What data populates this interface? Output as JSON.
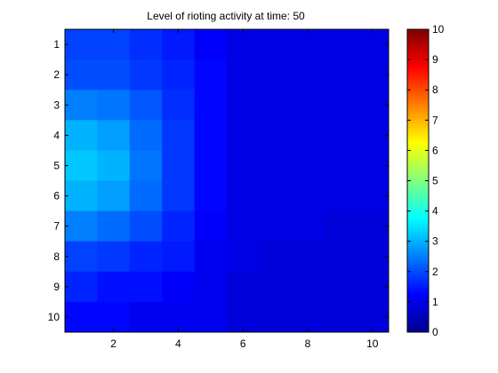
{
  "chart_data": {
    "type": "heatmap",
    "title": "Level of rioting activity at time: 50",
    "xlabel": "",
    "ylabel": "",
    "x_ticks": [
      2,
      4,
      6,
      8,
      10
    ],
    "y_ticks": [
      1,
      2,
      3,
      4,
      5,
      6,
      7,
      8,
      9,
      10
    ],
    "xlim": [
      0.5,
      10.5
    ],
    "ylim": [
      0.5,
      10.5
    ],
    "y_direction": "reversed",
    "colormap": "jet",
    "colorbar": {
      "min": 0,
      "max": 10,
      "ticks": [
        0,
        1,
        2,
        3,
        4,
        5,
        6,
        7,
        8,
        9,
        10
      ],
      "placement": "right"
    },
    "grid": false,
    "values": [
      [
        1.9,
        1.9,
        1.7,
        1.5,
        1.2,
        1.0,
        1.0,
        1.0,
        1.0,
        1.0
      ],
      [
        2.0,
        2.0,
        1.8,
        1.6,
        1.3,
        1.0,
        1.0,
        1.0,
        1.0,
        1.0
      ],
      [
        2.5,
        2.4,
        2.1,
        1.7,
        1.3,
        1.0,
        1.0,
        1.0,
        1.0,
        1.0
      ],
      [
        3.0,
        2.8,
        2.3,
        1.8,
        1.3,
        1.0,
        1.0,
        1.0,
        1.0,
        1.0
      ],
      [
        3.2,
        3.0,
        2.4,
        1.8,
        1.3,
        1.0,
        1.0,
        1.0,
        1.0,
        1.0
      ],
      [
        3.0,
        2.8,
        2.3,
        1.8,
        1.3,
        1.0,
        1.0,
        1.0,
        1.0,
        1.0
      ],
      [
        2.5,
        2.3,
        2.0,
        1.6,
        1.2,
        1.0,
        1.0,
        1.0,
        0.9,
        0.9
      ],
      [
        1.9,
        1.8,
        1.6,
        1.5,
        1.1,
        1.0,
        0.9,
        0.9,
        0.9,
        0.9
      ],
      [
        1.6,
        1.4,
        1.4,
        1.2,
        1.1,
        0.9,
        0.9,
        0.9,
        0.9,
        0.9
      ],
      [
        1.3,
        1.3,
        1.1,
        1.1,
        1.1,
        0.9,
        0.9,
        0.9,
        0.9,
        0.9
      ]
    ]
  }
}
